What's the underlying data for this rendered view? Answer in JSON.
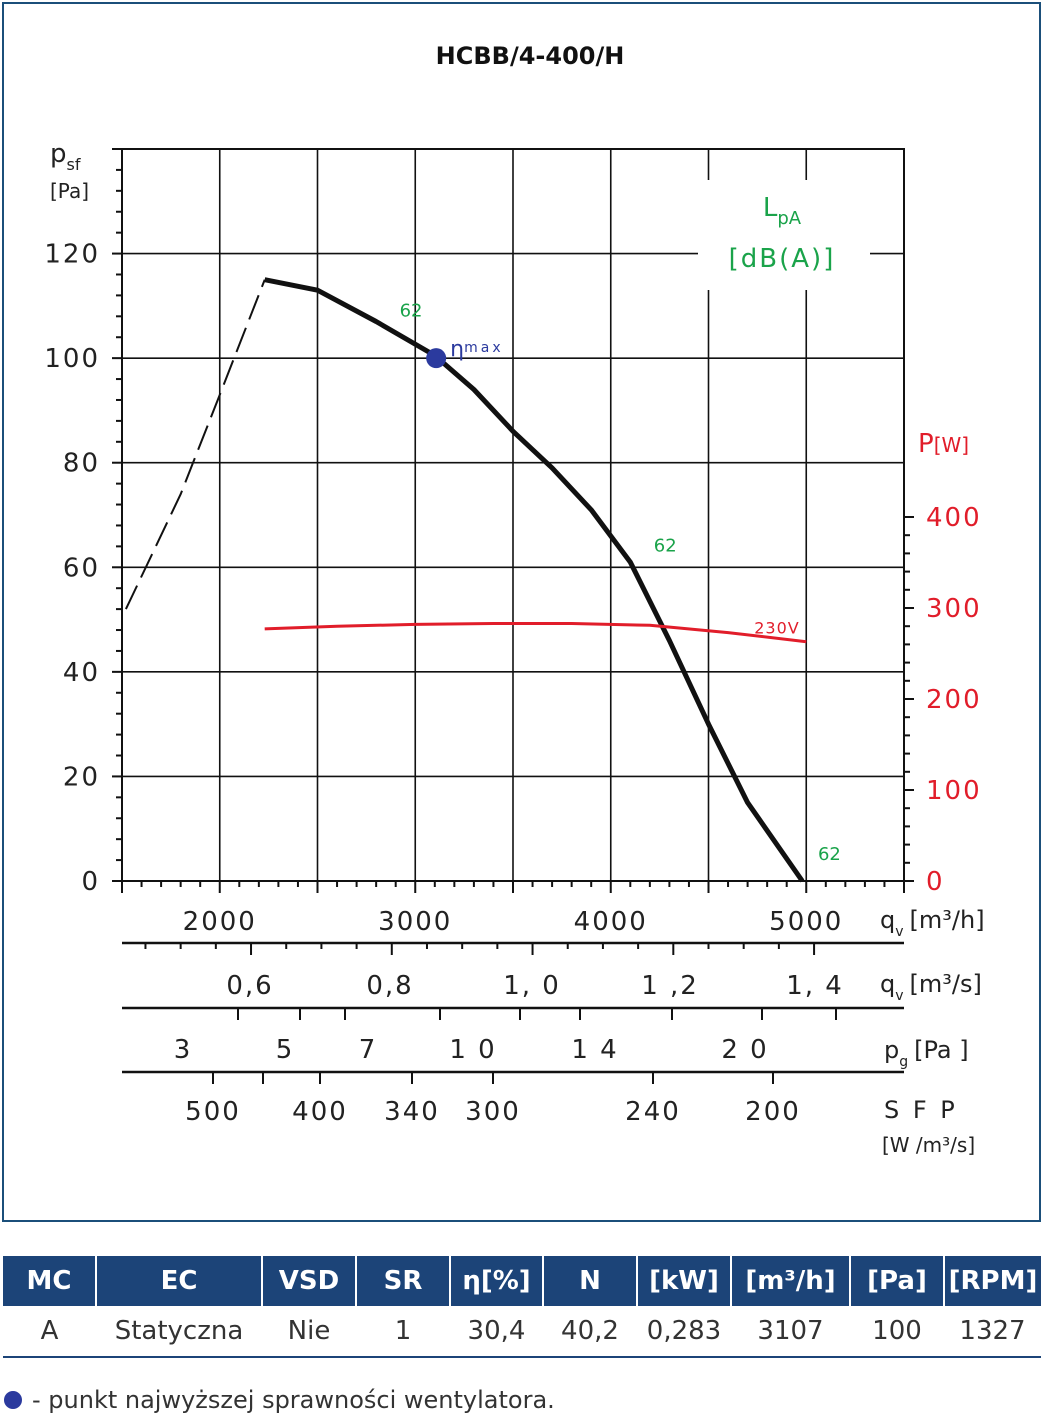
{
  "chart_data": {
    "type": "line",
    "title": "HCBB/4-400/H",
    "y_left": {
      "label_main": "p",
      "label_sub": "sf",
      "unit": "[Pa]",
      "range": [
        0,
        140
      ],
      "ticks": [
        0,
        20,
        40,
        60,
        80,
        100,
        120
      ]
    },
    "y_right": {
      "label_main": "P",
      "unit": "[W]",
      "range": [
        0,
        400
      ],
      "ticks": [
        0,
        100,
        200,
        300,
        400
      ],
      "color": "#e11d2a"
    },
    "x": {
      "label_main": "q",
      "label_sub": "v",
      "unit": "[m³/h]",
      "range": [
        1500,
        5500
      ],
      "ticks": [
        2000,
        3000,
        4000,
        5000
      ]
    },
    "series": [
      {
        "kind": "pressure_solid",
        "color": "#111111",
        "x": [
          2230,
          2500,
          2800,
          3100,
          3300,
          3500,
          3700,
          3900,
          4100,
          4300,
          4500,
          4700,
          4980
        ],
        "y": [
          115,
          113,
          107,
          100.5,
          94,
          86,
          79,
          71,
          61,
          46,
          30,
          15,
          0
        ]
      },
      {
        "kind": "pressure_dashed",
        "color": "#111111",
        "x": [
          1520,
          1800,
          2000,
          2230
        ],
        "y": [
          52,
          74,
          93,
          115
        ]
      },
      {
        "kind": "power",
        "name": "230V",
        "color": "#e11d2a",
        "x": [
          2230,
          2600,
          3000,
          3400,
          3800,
          4200,
          4600,
          5000
        ],
        "y": [
          277,
          280,
          282,
          283,
          283,
          281,
          273,
          263
        ]
      }
    ],
    "eta_max": {
      "x": 3107,
      "y": 100,
      "label": "η",
      "label_sub": "max",
      "color": "#2b3a9e"
    },
    "noise_labels": [
      {
        "text": "62",
        "x": 2920,
        "y": 108
      },
      {
        "text": "62",
        "x": 4220,
        "y": 63
      },
      {
        "text": "62",
        "x": 5060,
        "y": 4
      }
    ],
    "lpa_box": {
      "line1_main": "L",
      "line1_sub": "pA",
      "line2": "[dB(A)]",
      "color": "#1aa34a"
    },
    "secondary_axes": [
      {
        "label": "q",
        "label_sub": "v",
        "unit": "[m³/s]",
        "tick_values": [
          0.6,
          0.8,
          1.0,
          1.2,
          1.4
        ],
        "tick_texts": [
          "0,6",
          "0,8",
          "1, 0",
          "1 ,2",
          "1, 4"
        ]
      },
      {
        "label": "p",
        "label_sub": "g",
        "unit": "[Pa ]",
        "tick_texts": [
          "3",
          "5",
          "7",
          "1 0",
          "1 4",
          "2 0"
        ]
      },
      {
        "label": "S F P",
        "unit": "[W /m³/s]",
        "tick_texts": [
          "500",
          "400",
          "340",
          "300",
          "240",
          "200"
        ]
      }
    ],
    "grid": true
  },
  "table": {
    "headers": [
      "MC",
      "EC",
      "VSD",
      "SR",
      "η[%]",
      "N",
      "[kW]",
      "[m³/h]",
      "[Pa]",
      "[RPM]"
    ],
    "row": [
      "A",
      "Statyczna",
      "Nie",
      "1",
      "30,4",
      "40,2",
      "0,283",
      "3107",
      "100",
      "1327"
    ]
  },
  "legend_note": "- punkt najwyższej sprawności wentylatora."
}
